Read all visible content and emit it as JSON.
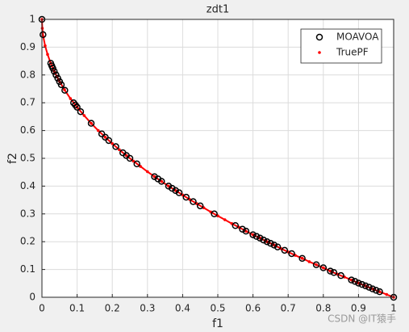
{
  "chart_data": {
    "type": "scatter",
    "title": "zdt1",
    "x_label": "f1",
    "y_label": "f2",
    "xlim": [
      0,
      1
    ],
    "ylim": [
      0,
      1
    ],
    "xticks": [
      0,
      0.1,
      0.2,
      0.3,
      0.4,
      0.5,
      0.6,
      0.7,
      0.8,
      0.9,
      1
    ],
    "yticks": [
      0,
      0.1,
      0.2,
      0.3,
      0.4,
      0.5,
      0.6,
      0.7,
      0.8,
      0.9,
      1
    ],
    "grid": true,
    "legend": "northeast",
    "series": [
      {
        "name": "MOAVOA",
        "color": "#000000",
        "marker": "circle",
        "x": [
          0,
          0.003,
          0.025,
          0.028,
          0.031,
          0.035,
          0.04,
          0.045,
          0.05,
          0.055,
          0.065,
          0.09,
          0.095,
          0.1,
          0.11,
          0.14,
          0.17,
          0.18,
          0.19,
          0.21,
          0.23,
          0.24,
          0.25,
          0.27,
          0.32,
          0.33,
          0.34,
          0.36,
          0.37,
          0.38,
          0.39,
          0.41,
          0.43,
          0.45,
          0.49,
          0.55,
          0.57,
          0.58,
          0.6,
          0.61,
          0.62,
          0.63,
          0.64,
          0.65,
          0.66,
          0.67,
          0.69,
          0.71,
          0.74,
          0.78,
          0.8,
          0.82,
          0.83,
          0.85,
          0.88,
          0.89,
          0.9,
          0.91,
          0.92,
          0.93,
          0.94,
          0.95,
          0.96,
          1
        ],
        "y": [
          1,
          0.945,
          0.842,
          0.833,
          0.824,
          0.813,
          0.8,
          0.788,
          0.776,
          0.765,
          0.745,
          0.7,
          0.692,
          0.684,
          0.668,
          0.626,
          0.588,
          0.576,
          0.564,
          0.542,
          0.52,
          0.51,
          0.5,
          0.48,
          0.434,
          0.426,
          0.417,
          0.4,
          0.392,
          0.384,
          0.376,
          0.36,
          0.344,
          0.329,
          0.3,
          0.258,
          0.245,
          0.238,
          0.225,
          0.219,
          0.213,
          0.206,
          0.2,
          0.194,
          0.188,
          0.181,
          0.169,
          0.157,
          0.14,
          0.117,
          0.106,
          0.094,
          0.089,
          0.078,
          0.062,
          0.057,
          0.051,
          0.046,
          0.041,
          0.036,
          0.03,
          0.025,
          0.02,
          0
        ]
      },
      {
        "name": "TruePF",
        "color": "#ff0000",
        "marker": "dot",
        "x": [
          0,
          0.001,
          0.004,
          0.009,
          0.016,
          0.025,
          0.036,
          0.049,
          0.064,
          0.081,
          0.1,
          0.12,
          0.14,
          0.16,
          0.18,
          0.2,
          0.22,
          0.24,
          0.26,
          0.28,
          0.3,
          0.32,
          0.34,
          0.36,
          0.38,
          0.4,
          0.42,
          0.44,
          0.46,
          0.48,
          0.5,
          0.52,
          0.54,
          0.56,
          0.58,
          0.6,
          0.62,
          0.64,
          0.66,
          0.68,
          0.7,
          0.72,
          0.74,
          0.76,
          0.78,
          0.8,
          0.82,
          0.84,
          0.86,
          0.88,
          0.9,
          0.92,
          0.94,
          0.96,
          0.98,
          1
        ],
        "y": [
          1,
          0.968,
          0.937,
          0.905,
          0.874,
          0.842,
          0.81,
          0.779,
          0.747,
          0.715,
          0.684,
          0.654,
          0.626,
          0.6,
          0.576,
          0.553,
          0.531,
          0.51,
          0.49,
          0.471,
          0.452,
          0.434,
          0.417,
          0.4,
          0.384,
          0.368,
          0.352,
          0.337,
          0.322,
          0.307,
          0.293,
          0.279,
          0.265,
          0.252,
          0.238,
          0.225,
          0.213,
          0.2,
          0.188,
          0.175,
          0.163,
          0.151,
          0.14,
          0.128,
          0.117,
          0.106,
          0.094,
          0.083,
          0.073,
          0.062,
          0.051,
          0.041,
          0.03,
          0.02,
          0.01,
          0
        ]
      }
    ]
  },
  "watermark": "CSDN @IT猿手"
}
